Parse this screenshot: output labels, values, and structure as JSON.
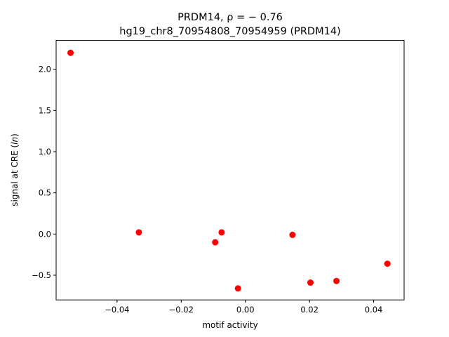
{
  "chart_data": {
    "type": "scatter",
    "title_line1": "PRDM14, ρ = − 0.76",
    "title_line2": "hg19_chr8_70954808_70954959 (PRDM14)",
    "xlabel": "motif activity",
    "ylabel": "signal at CRE (ln)",
    "xlim": [
      -0.059,
      0.0495
    ],
    "ylim": [
      -0.8,
      2.35
    ],
    "x_ticks": [
      -0.04,
      -0.02,
      0.0,
      0.02,
      0.04
    ],
    "x_tick_labels": [
      "−0.04",
      "−0.02",
      "0.00",
      "0.02",
      "0.04"
    ],
    "y_ticks": [
      -0.5,
      0.0,
      0.5,
      1.0,
      1.5,
      2.0
    ],
    "y_tick_labels": [
      "−0.5",
      "0.0",
      "0.5",
      "1.0",
      "1.5",
      "2.0"
    ],
    "grid": false,
    "point_color": "#ff0000",
    "points": [
      {
        "x": -0.0545,
        "y": 2.2
      },
      {
        "x": -0.0332,
        "y": 0.02
      },
      {
        "x": -0.0094,
        "y": -0.1
      },
      {
        "x": -0.0074,
        "y": 0.02
      },
      {
        "x": -0.0023,
        "y": -0.66
      },
      {
        "x": 0.0147,
        "y": -0.01
      },
      {
        "x": 0.0203,
        "y": -0.59
      },
      {
        "x": 0.0284,
        "y": -0.57
      },
      {
        "x": 0.0443,
        "y": -0.36
      }
    ]
  }
}
